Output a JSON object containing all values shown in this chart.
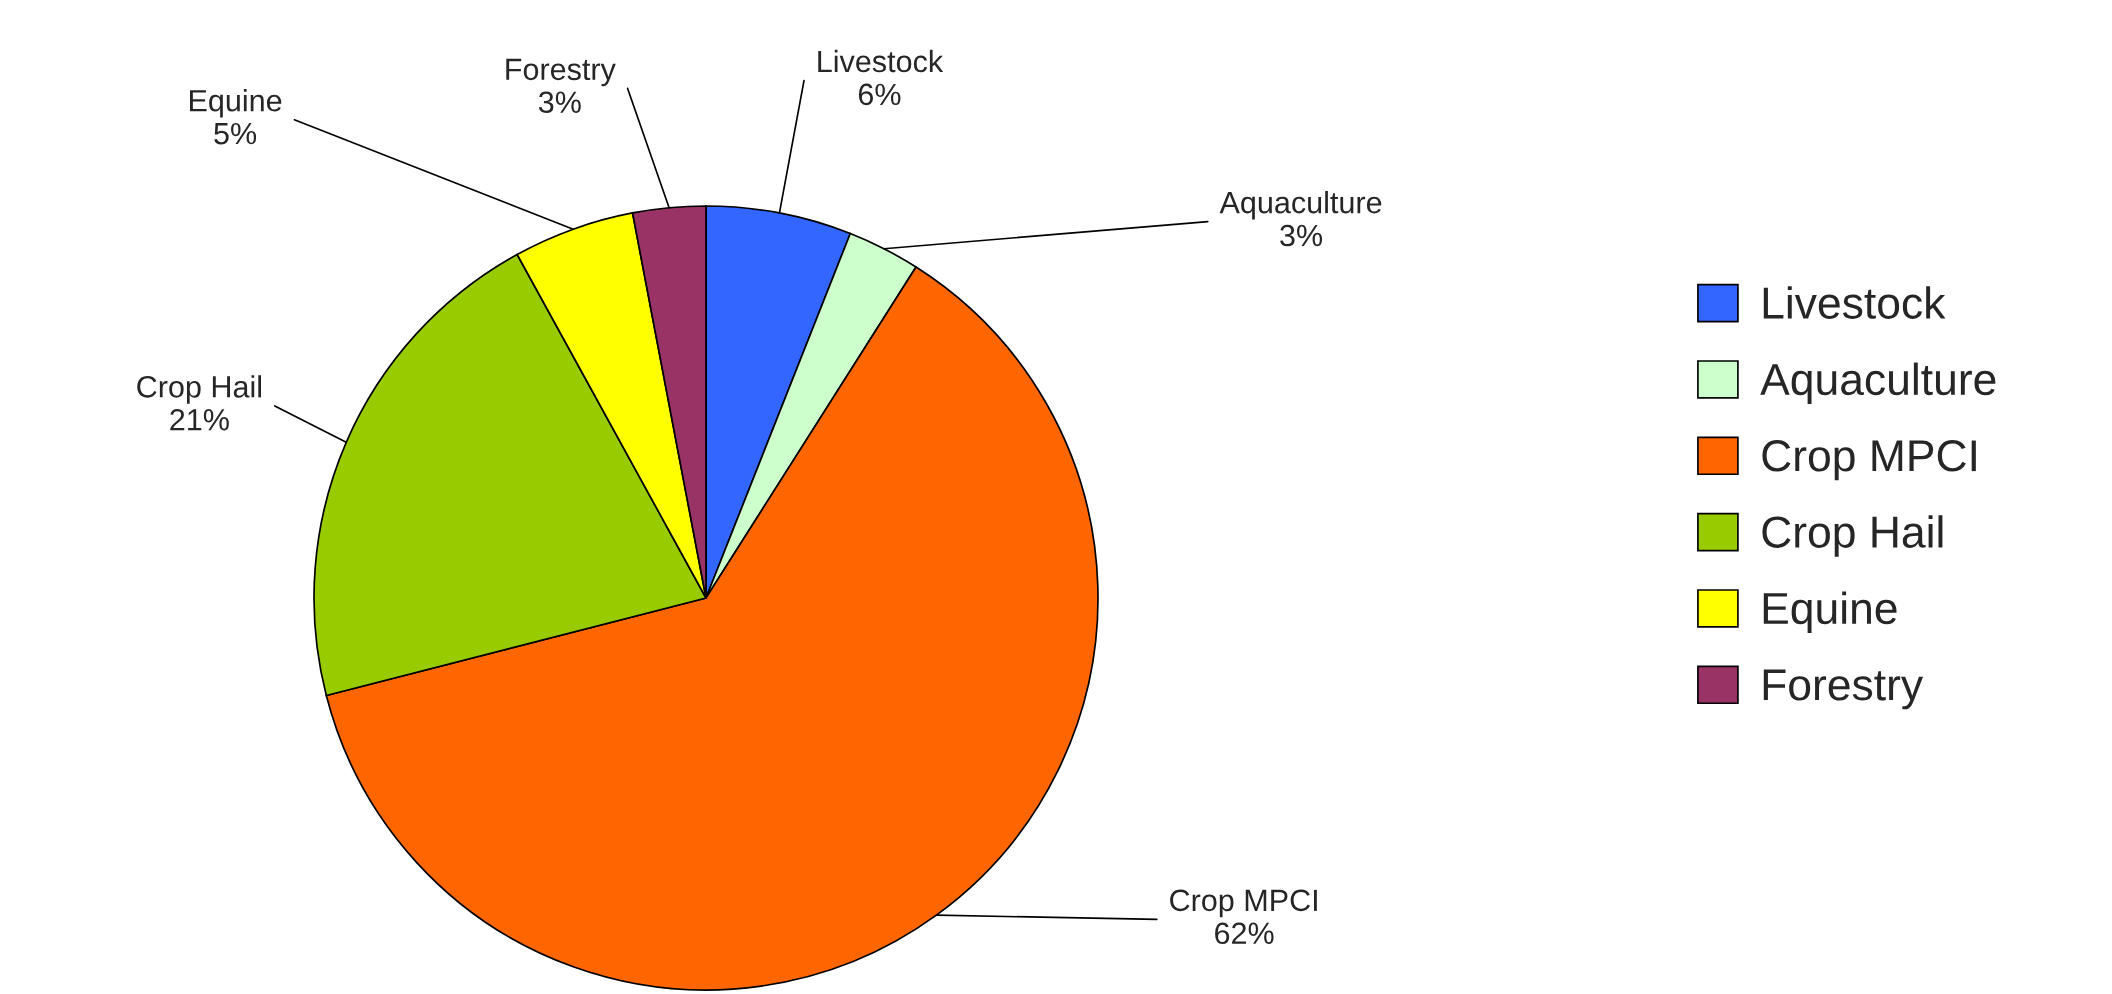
{
  "chart_data": {
    "type": "pie",
    "categories": [
      "Livestock",
      "Aquaculture",
      "Crop MPCI",
      "Crop Hail",
      "Equine",
      "Forestry"
    ],
    "values": [
      6,
      3,
      62,
      21,
      5,
      3
    ],
    "value_labels": [
      "6%",
      "3%",
      "62%",
      "21%",
      "5%",
      "3%"
    ],
    "colors": [
      "#3366ff",
      "#ccffcc",
      "#ff6600",
      "#99cc00",
      "#ffff00",
      "#993366"
    ],
    "legend": "right"
  }
}
